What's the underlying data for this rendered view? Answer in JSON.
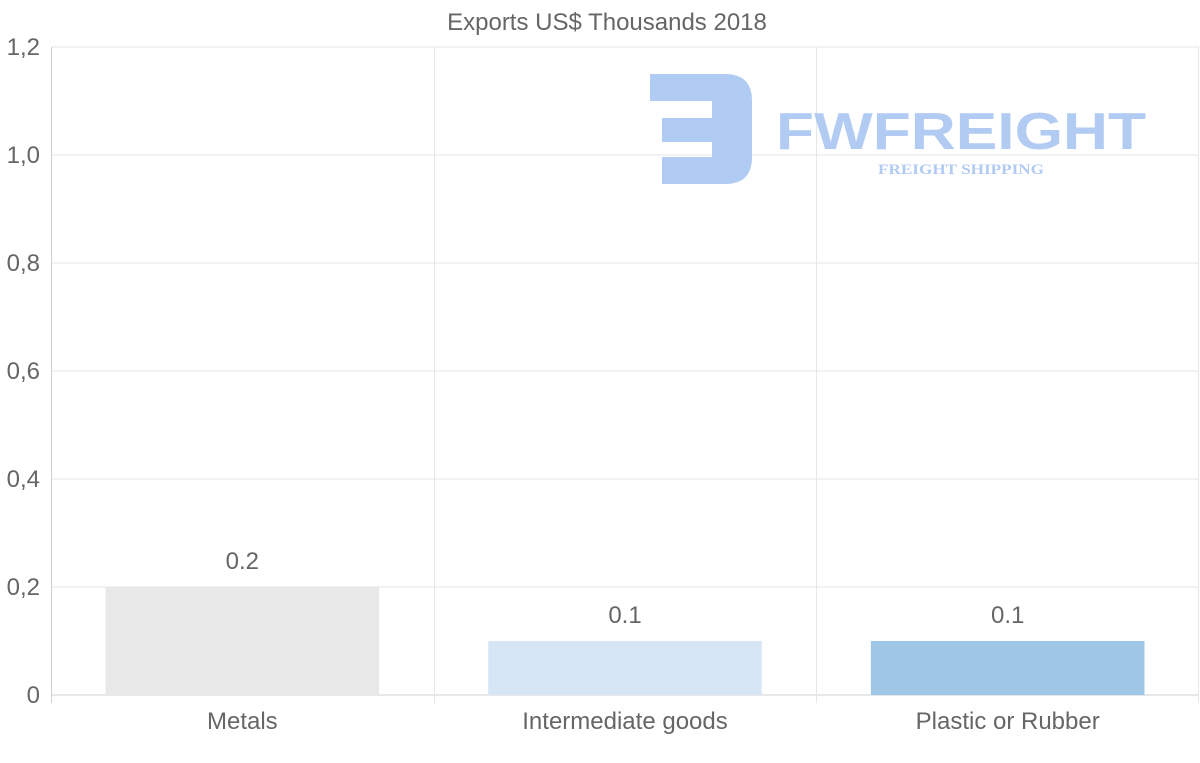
{
  "chart_data": {
    "type": "bar",
    "title": "Exports US$ Thousands 2018",
    "categories": [
      "Metals",
      "Intermediate goods",
      "Plastic or Rubber"
    ],
    "values": [
      0.2,
      0.1,
      0.1
    ],
    "data_labels": [
      "0.2",
      "0.1",
      "0.1"
    ],
    "bar_colors": [
      "#e8e8e8",
      "#d6e6f7",
      "#9fc6e7"
    ],
    "ylim": [
      0,
      1.2
    ],
    "yticks": [
      0,
      0.2,
      0.4,
      0.6,
      0.8,
      1.0,
      1.2
    ],
    "ytick_labels": [
      "0",
      "0,2",
      "0,4",
      "0,6",
      "0,8",
      "1,0",
      "1,2"
    ],
    "grid": true,
    "xlabel": "",
    "ylabel": ""
  },
  "watermark": {
    "brand": "FWFREIGHT",
    "tagline": "FREIGHT SHIPPING",
    "color": "#a9c6f2"
  }
}
